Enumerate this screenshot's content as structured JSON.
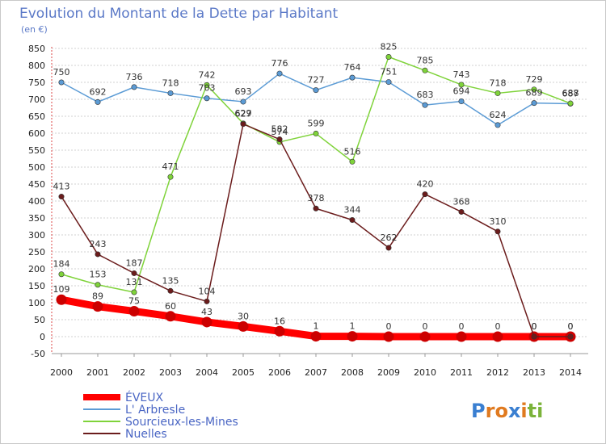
{
  "chart_data": {
    "type": "line",
    "title": "Evolution du Montant de la Dette par Habitant",
    "subtitle": "(en €)",
    "categories": [
      "2000",
      "2001",
      "2002",
      "2003",
      "2004",
      "2005",
      "2006",
      "2007",
      "2008",
      "2009",
      "2010",
      "2011",
      "2012",
      "2013",
      "2014"
    ],
    "ylim": [
      -50,
      850
    ],
    "yticks": [
      -50,
      0,
      50,
      100,
      150,
      200,
      250,
      300,
      350,
      400,
      450,
      500,
      550,
      600,
      650,
      700,
      750,
      800,
      850
    ],
    "grid": true,
    "legend_position": "bottom-left",
    "series": [
      {
        "name": "ÉVEUX",
        "color": "#ff0000",
        "values": [
          109,
          89,
          75,
          60,
          43,
          30,
          16,
          1,
          1,
          0,
          0,
          0,
          0,
          0,
          0
        ],
        "labels": [
          "109",
          "89",
          "75",
          "60",
          "43",
          "30",
          "16",
          "1",
          "1",
          "0",
          "0",
          "0",
          "0",
          "0",
          "0"
        ]
      },
      {
        "name": "L' Arbresle",
        "color": "#5b9bd5",
        "values": [
          750,
          692,
          736,
          718,
          703,
          693,
          776,
          727,
          764,
          751,
          683,
          694,
          624,
          689,
          687
        ],
        "labels": [
          "750",
          "692",
          "736",
          "718",
          "703",
          "693",
          "776",
          "727",
          "764",
          "751",
          "683",
          "694",
          "624",
          "689",
          "687"
        ]
      },
      {
        "name": "Sourcieux-les-Mines",
        "color": "#7fd33a",
        "values": [
          184,
          153,
          131,
          471,
          742,
          629,
          574,
          599,
          516,
          825,
          785,
          743,
          718,
          729,
          688
        ],
        "labels": [
          "184",
          "153",
          "131",
          "471",
          "742",
          "629",
          "574",
          "599",
          "516",
          "825",
          "785",
          "743",
          "718",
          "729",
          "688"
        ]
      },
      {
        "name": "Nuelles",
        "color": "#6b1c1c",
        "values": [
          413,
          243,
          187,
          135,
          104,
          627,
          582,
          378,
          344,
          262,
          420,
          368,
          310,
          0,
          0
        ],
        "labels": [
          "413",
          "243",
          "187",
          "135",
          "104",
          "627",
          "582",
          "378",
          "344",
          "262",
          "420",
          "368",
          "310",
          "0",
          "0"
        ]
      }
    ],
    "logo": "Proxiti"
  }
}
